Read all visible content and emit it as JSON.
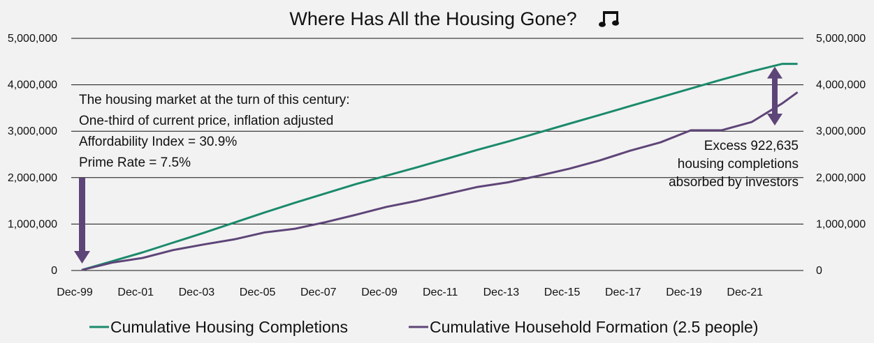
{
  "chart_data": {
    "type": "line",
    "title": "Where Has All the Housing Gone?",
    "title_icon": "music-notes-icon",
    "x_tick_labels": [
      "Dec-99",
      "Dec-01",
      "Dec-03",
      "Dec-05",
      "Dec-07",
      "Dec-09",
      "Dec-11",
      "Dec-13",
      "Dec-15",
      "Dec-17",
      "Dec-19",
      "Dec-21"
    ],
    "ylim": [
      0,
      5000000
    ],
    "y_tick_labels": [
      "0",
      "1,000,000",
      "2,000,000",
      "3,000,000",
      "4,000,000",
      "5,000,000"
    ],
    "y_ticks": [
      0,
      1000000,
      2000000,
      3000000,
      4000000,
      5000000
    ],
    "xlabel": "",
    "ylabel": "",
    "grid": true,
    "legend_position": "bottom",
    "x_dates": [
      "1999-12",
      "2000-12",
      "2001-12",
      "2002-12",
      "2003-12",
      "2004-12",
      "2005-12",
      "2006-12",
      "2007-12",
      "2008-12",
      "2009-12",
      "2010-12",
      "2011-12",
      "2012-12",
      "2013-12",
      "2014-12",
      "2015-12",
      "2016-12",
      "2017-12",
      "2018-12",
      "2019-12",
      "2020-12",
      "2021-12",
      "2022-12",
      "2023-06"
    ],
    "series": [
      {
        "name": "Cumulative Housing Completions",
        "color": "#1b8a6b",
        "values": [
          10000,
          200000,
          390000,
          600000,
          810000,
          1030000,
          1250000,
          1460000,
          1660000,
          1860000,
          2040000,
          2220000,
          2410000,
          2600000,
          2780000,
          2970000,
          3160000,
          3350000,
          3540000,
          3730000,
          3920000,
          4110000,
          4290000,
          4450000,
          4450000
        ]
      },
      {
        "name": "Cumulative Household Formation (2.5 people)",
        "color": "#5e4578",
        "values": [
          10000,
          170000,
          270000,
          440000,
          560000,
          670000,
          820000,
          900000,
          1040000,
          1200000,
          1370000,
          1500000,
          1650000,
          1800000,
          1900000,
          2040000,
          2190000,
          2370000,
          2580000,
          2760000,
          3020000,
          3020000,
          3200000,
          3600000,
          3840000
        ]
      }
    ],
    "annotations": {
      "left_lines": [
        "The housing market at the turn of this century:",
        "One-third of current price, inflation adjusted",
        "Affordability  Index = 30.9%",
        "Prime Rate = 7.5%"
      ],
      "right_lines": [
        "Excess 922,635",
        "housing completions",
        "absorbed by investors"
      ],
      "arrow_color": "#5e4578"
    }
  }
}
